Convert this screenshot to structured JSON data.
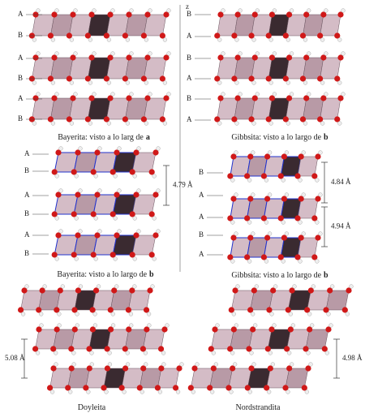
{
  "axis_label": "z",
  "panels": [
    {
      "layers": [
        "A",
        "B",
        "A",
        "B",
        "A",
        "B"
      ],
      "caption": "Bayerita: visto a lo larg de",
      "caption_axis": "a"
    },
    {
      "layers": [
        "B",
        "A",
        "B",
        "A",
        "B",
        "A"
      ],
      "caption": "Gibbsita: visto a lo largo de",
      "caption_axis": "b"
    },
    {
      "layers": [
        "A",
        "B",
        "A",
        "B",
        "A",
        "B"
      ],
      "caption": "Bayerita: visto a lo largo de",
      "caption_axis": "b",
      "distances": [
        "4.79 Å"
      ]
    },
    {
      "layers": [
        "B",
        "A",
        "A",
        "B",
        "A"
      ],
      "caption": "Gibbsita: visto a lo largo de",
      "caption_axis": "b",
      "distances": [
        "4.84 Å",
        "4.94 Å"
      ]
    },
    {
      "caption": "Doyleita",
      "distances": [
        "5.08 Å"
      ]
    },
    {
      "caption": "Nordstrandita",
      "distances": [
        "4.98 Å"
      ]
    }
  ]
}
